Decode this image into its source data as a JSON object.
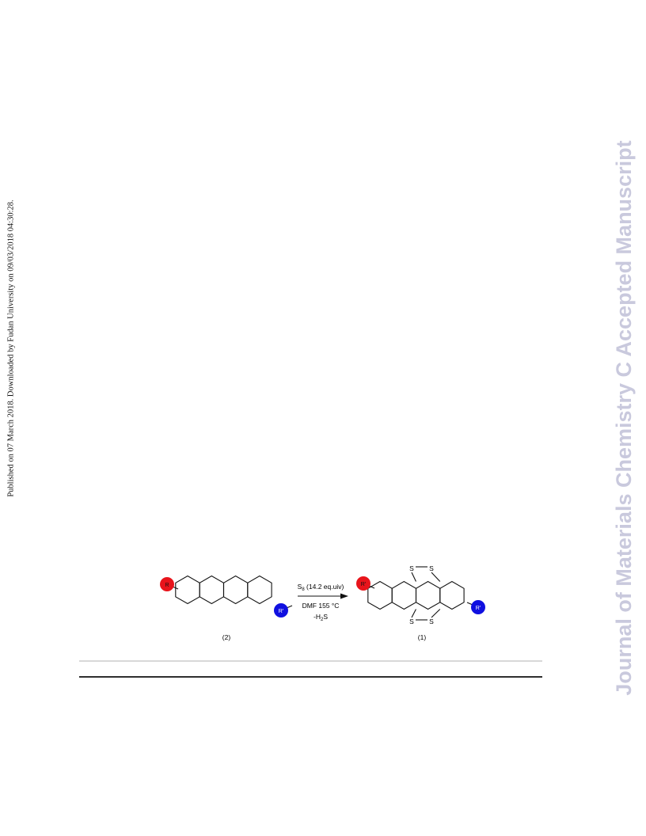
{
  "side_note": "Published on 07 March 2018. Downloaded by Fudan University on 09/03/2018 04:30:28.",
  "watermark": "Journal of Materials Chemistry C Accepted Manuscript",
  "scheme": {
    "reactant_label": "(2)",
    "product_label": "(1)",
    "reactant_substituents": [
      "R",
      "R'"
    ],
    "product_substituents": [
      "R'",
      "R'"
    ],
    "sulfur_atoms": [
      "S",
      "S",
      "S",
      "S"
    ],
    "conditions": [
      [
        "S",
        "8",
        " (14.2 eq.uiv)"
      ],
      [
        "DMF  155 °C"
      ],
      [
        "-H",
        "2",
        "S"
      ]
    ]
  }
}
